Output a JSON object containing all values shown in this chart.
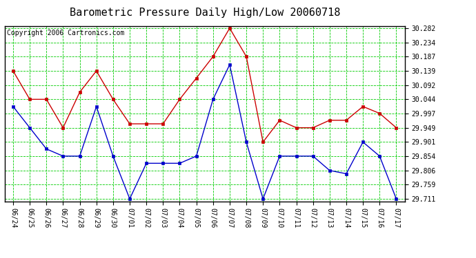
{
  "title": "Barometric Pressure Daily High/Low 20060718",
  "copyright": "Copyright 2006 Cartronics.com",
  "background_color": "#ffffff",
  "plot_bg_color": "#ffffff",
  "grid_color": "#00cc00",
  "dates": [
    "06/24",
    "06/25",
    "06/26",
    "06/27",
    "06/28",
    "06/29",
    "06/30",
    "07/01",
    "07/02",
    "07/03",
    "07/04",
    "07/05",
    "07/06",
    "07/07",
    "07/08",
    "07/09",
    "07/10",
    "07/11",
    "07/12",
    "07/13",
    "07/14",
    "07/15",
    "07/16",
    "07/17"
  ],
  "high_values": [
    30.139,
    30.044,
    30.044,
    29.949,
    30.068,
    30.139,
    30.044,
    29.962,
    29.962,
    29.962,
    30.044,
    30.115,
    30.187,
    30.282,
    30.187,
    29.901,
    29.974,
    29.949,
    29.949,
    29.974,
    29.974,
    30.02,
    29.997,
    29.949
  ],
  "low_values": [
    30.02,
    29.949,
    29.878,
    29.854,
    29.854,
    30.02,
    29.854,
    29.711,
    29.83,
    29.83,
    29.83,
    29.854,
    30.044,
    30.16,
    29.901,
    29.711,
    29.854,
    29.854,
    29.854,
    29.806,
    29.795,
    29.901,
    29.854,
    29.711
  ],
  "high_color": "#cc0000",
  "low_color": "#0000cc",
  "marker": "s",
  "markersize": 3,
  "linewidth": 1.0,
  "ylim_min": 29.711,
  "ylim_max": 30.282,
  "yticks": [
    29.711,
    29.759,
    29.806,
    29.854,
    29.901,
    29.949,
    29.997,
    30.044,
    30.092,
    30.139,
    30.187,
    30.234,
    30.282
  ],
  "title_fontsize": 11,
  "tick_fontsize": 7,
  "copyright_fontsize": 7
}
